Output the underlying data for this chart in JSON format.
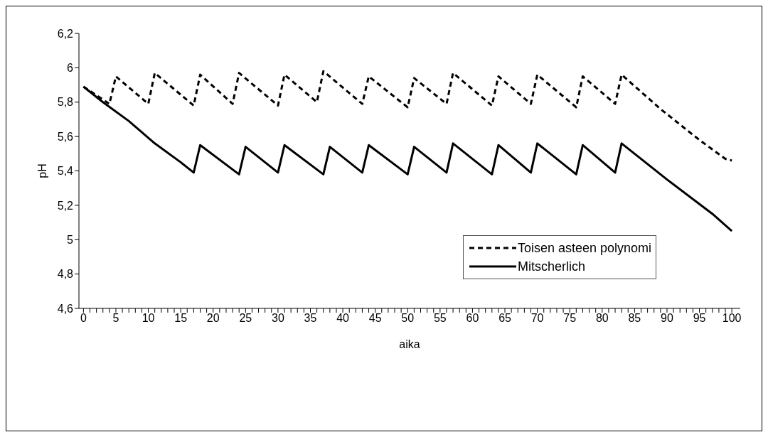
{
  "chart_data": {
    "type": "line",
    "xlabel": "aika",
    "ylabel": "pH",
    "xlim": [
      -0.7,
      101.3
    ],
    "ylim": [
      4.6,
      6.2
    ],
    "yticks": [
      {
        "value": 4.6,
        "label": "4,6"
      },
      {
        "value": 4.8,
        "label": "4,8"
      },
      5,
      {
        "value": 5.2,
        "label": "5,2"
      },
      {
        "value": 5.4,
        "label": "5,4"
      },
      {
        "value": 5.6,
        "label": "5,6"
      },
      {
        "value": 5.8,
        "label": "5,8"
      },
      6,
      {
        "value": 6.2,
        "label": "6,2"
      }
    ],
    "xticks": [
      0,
      {
        "value": 1,
        "label": null
      },
      {
        "value": 2,
        "label": null
      },
      {
        "value": 3,
        "label": null
      },
      {
        "value": 4,
        "label": null
      },
      5,
      {
        "value": 6,
        "label": null
      },
      {
        "value": 7,
        "label": null
      },
      {
        "value": 8,
        "label": null
      },
      {
        "value": 9,
        "label": null
      },
      10,
      {
        "value": 11,
        "label": null
      },
      {
        "value": 12,
        "label": null
      },
      {
        "value": 13,
        "label": null
      },
      {
        "value": 14,
        "label": null
      },
      15,
      {
        "value": 16,
        "label": null
      },
      {
        "value": 17,
        "label": null
      },
      {
        "value": 18,
        "label": null
      },
      {
        "value": 19,
        "label": null
      },
      20,
      {
        "value": 21,
        "label": null
      },
      {
        "value": 22,
        "label": null
      },
      {
        "value": 23,
        "label": null
      },
      {
        "value": 24,
        "label": null
      },
      25,
      {
        "value": 26,
        "label": null
      },
      {
        "value": 27,
        "label": null
      },
      {
        "value": 28,
        "label": null
      },
      {
        "value": 29,
        "label": null
      },
      30,
      {
        "value": 31,
        "label": null
      },
      {
        "value": 32,
        "label": null
      },
      {
        "value": 33,
        "label": null
      },
      {
        "value": 34,
        "label": null
      },
      35,
      {
        "value": 36,
        "label": null
      },
      {
        "value": 37,
        "label": null
      },
      {
        "value": 38,
        "label": null
      },
      {
        "value": 39,
        "label": null
      },
      40,
      {
        "value": 41,
        "label": null
      },
      {
        "value": 42,
        "label": null
      },
      {
        "value": 43,
        "label": null
      },
      {
        "value": 44,
        "label": null
      },
      45,
      {
        "value": 46,
        "label": null
      },
      {
        "value": 47,
        "label": null
      },
      {
        "value": 48,
        "label": null
      },
      {
        "value": 49,
        "label": null
      },
      50,
      {
        "value": 51,
        "label": null
      },
      {
        "value": 52,
        "label": null
      },
      {
        "value": 53,
        "label": null
      },
      {
        "value": 54,
        "label": null
      },
      55,
      {
        "value": 56,
        "label": null
      },
      {
        "value": 57,
        "label": null
      },
      {
        "value": 58,
        "label": null
      },
      {
        "value": 59,
        "label": null
      },
      60,
      {
        "value": 61,
        "label": null
      },
      {
        "value": 62,
        "label": null
      },
      {
        "value": 63,
        "label": null
      },
      {
        "value": 64,
        "label": null
      },
      65,
      {
        "value": 66,
        "label": null
      },
      {
        "value": 67,
        "label": null
      },
      {
        "value": 68,
        "label": null
      },
      {
        "value": 69,
        "label": null
      },
      70,
      {
        "value": 71,
        "label": null
      },
      {
        "value": 72,
        "label": null
      },
      {
        "value": 73,
        "label": null
      },
      {
        "value": 74,
        "label": null
      },
      75,
      {
        "value": 76,
        "label": null
      },
      {
        "value": 77,
        "label": null
      },
      {
        "value": 78,
        "label": null
      },
      {
        "value": 79,
        "label": null
      },
      80,
      {
        "value": 81,
        "label": null
      },
      {
        "value": 82,
        "label": null
      },
      {
        "value": 83,
        "label": null
      },
      {
        "value": 84,
        "label": null
      },
      85,
      {
        "value": 86,
        "label": null
      },
      {
        "value": 87,
        "label": null
      },
      {
        "value": 88,
        "label": null
      },
      {
        "value": 89,
        "label": null
      },
      90,
      {
        "value": 91,
        "label": null
      },
      {
        "value": 92,
        "label": null
      },
      {
        "value": 93,
        "label": null
      },
      {
        "value": 94,
        "label": null
      },
      95,
      {
        "value": 96,
        "label": null
      },
      {
        "value": 97,
        "label": null
      },
      {
        "value": 98,
        "label": null
      },
      {
        "value": 99,
        "label": null
      },
      100
    ],
    "grid": false,
    "legend": "right",
    "marker": "none",
    "series": [
      {
        "name": "Toisen asteen polynomi",
        "color": "#000000",
        "line_style": "dashed",
        "x": [
          0,
          4,
          5,
          10,
          11,
          17,
          18,
          23,
          24,
          30,
          31,
          36,
          37,
          43,
          44,
          50,
          51,
          56,
          57,
          63,
          64,
          69,
          70,
          76,
          77,
          82,
          83,
          86,
          89,
          92,
          95,
          99,
          100
        ],
        "values": [
          5.89,
          5.79,
          5.95,
          5.79,
          5.97,
          5.78,
          5.96,
          5.79,
          5.97,
          5.78,
          5.96,
          5.8,
          5.98,
          5.79,
          5.95,
          5.77,
          5.94,
          5.79,
          5.97,
          5.78,
          5.95,
          5.79,
          5.96,
          5.77,
          5.95,
          5.79,
          5.96,
          5.86,
          5.76,
          5.67,
          5.58,
          5.47,
          5.46
        ]
      },
      {
        "name": "Mitscherlich",
        "color": "#000000",
        "line_style": "solid",
        "x": [
          0,
          3,
          7,
          11,
          15,
          17,
          18,
          24,
          25,
          30,
          31,
          37,
          38,
          43,
          44,
          50,
          51,
          56,
          57,
          63,
          64,
          69,
          70,
          76,
          77,
          82,
          83,
          86,
          90,
          97,
          100
        ],
        "values": [
          5.89,
          5.8,
          5.69,
          5.56,
          5.45,
          5.39,
          5.55,
          5.38,
          5.54,
          5.39,
          5.55,
          5.38,
          5.54,
          5.39,
          5.55,
          5.38,
          5.54,
          5.39,
          5.56,
          5.38,
          5.55,
          5.39,
          5.56,
          5.38,
          5.55,
          5.39,
          5.56,
          5.47,
          5.35,
          5.15,
          5.05
        ]
      }
    ]
  }
}
